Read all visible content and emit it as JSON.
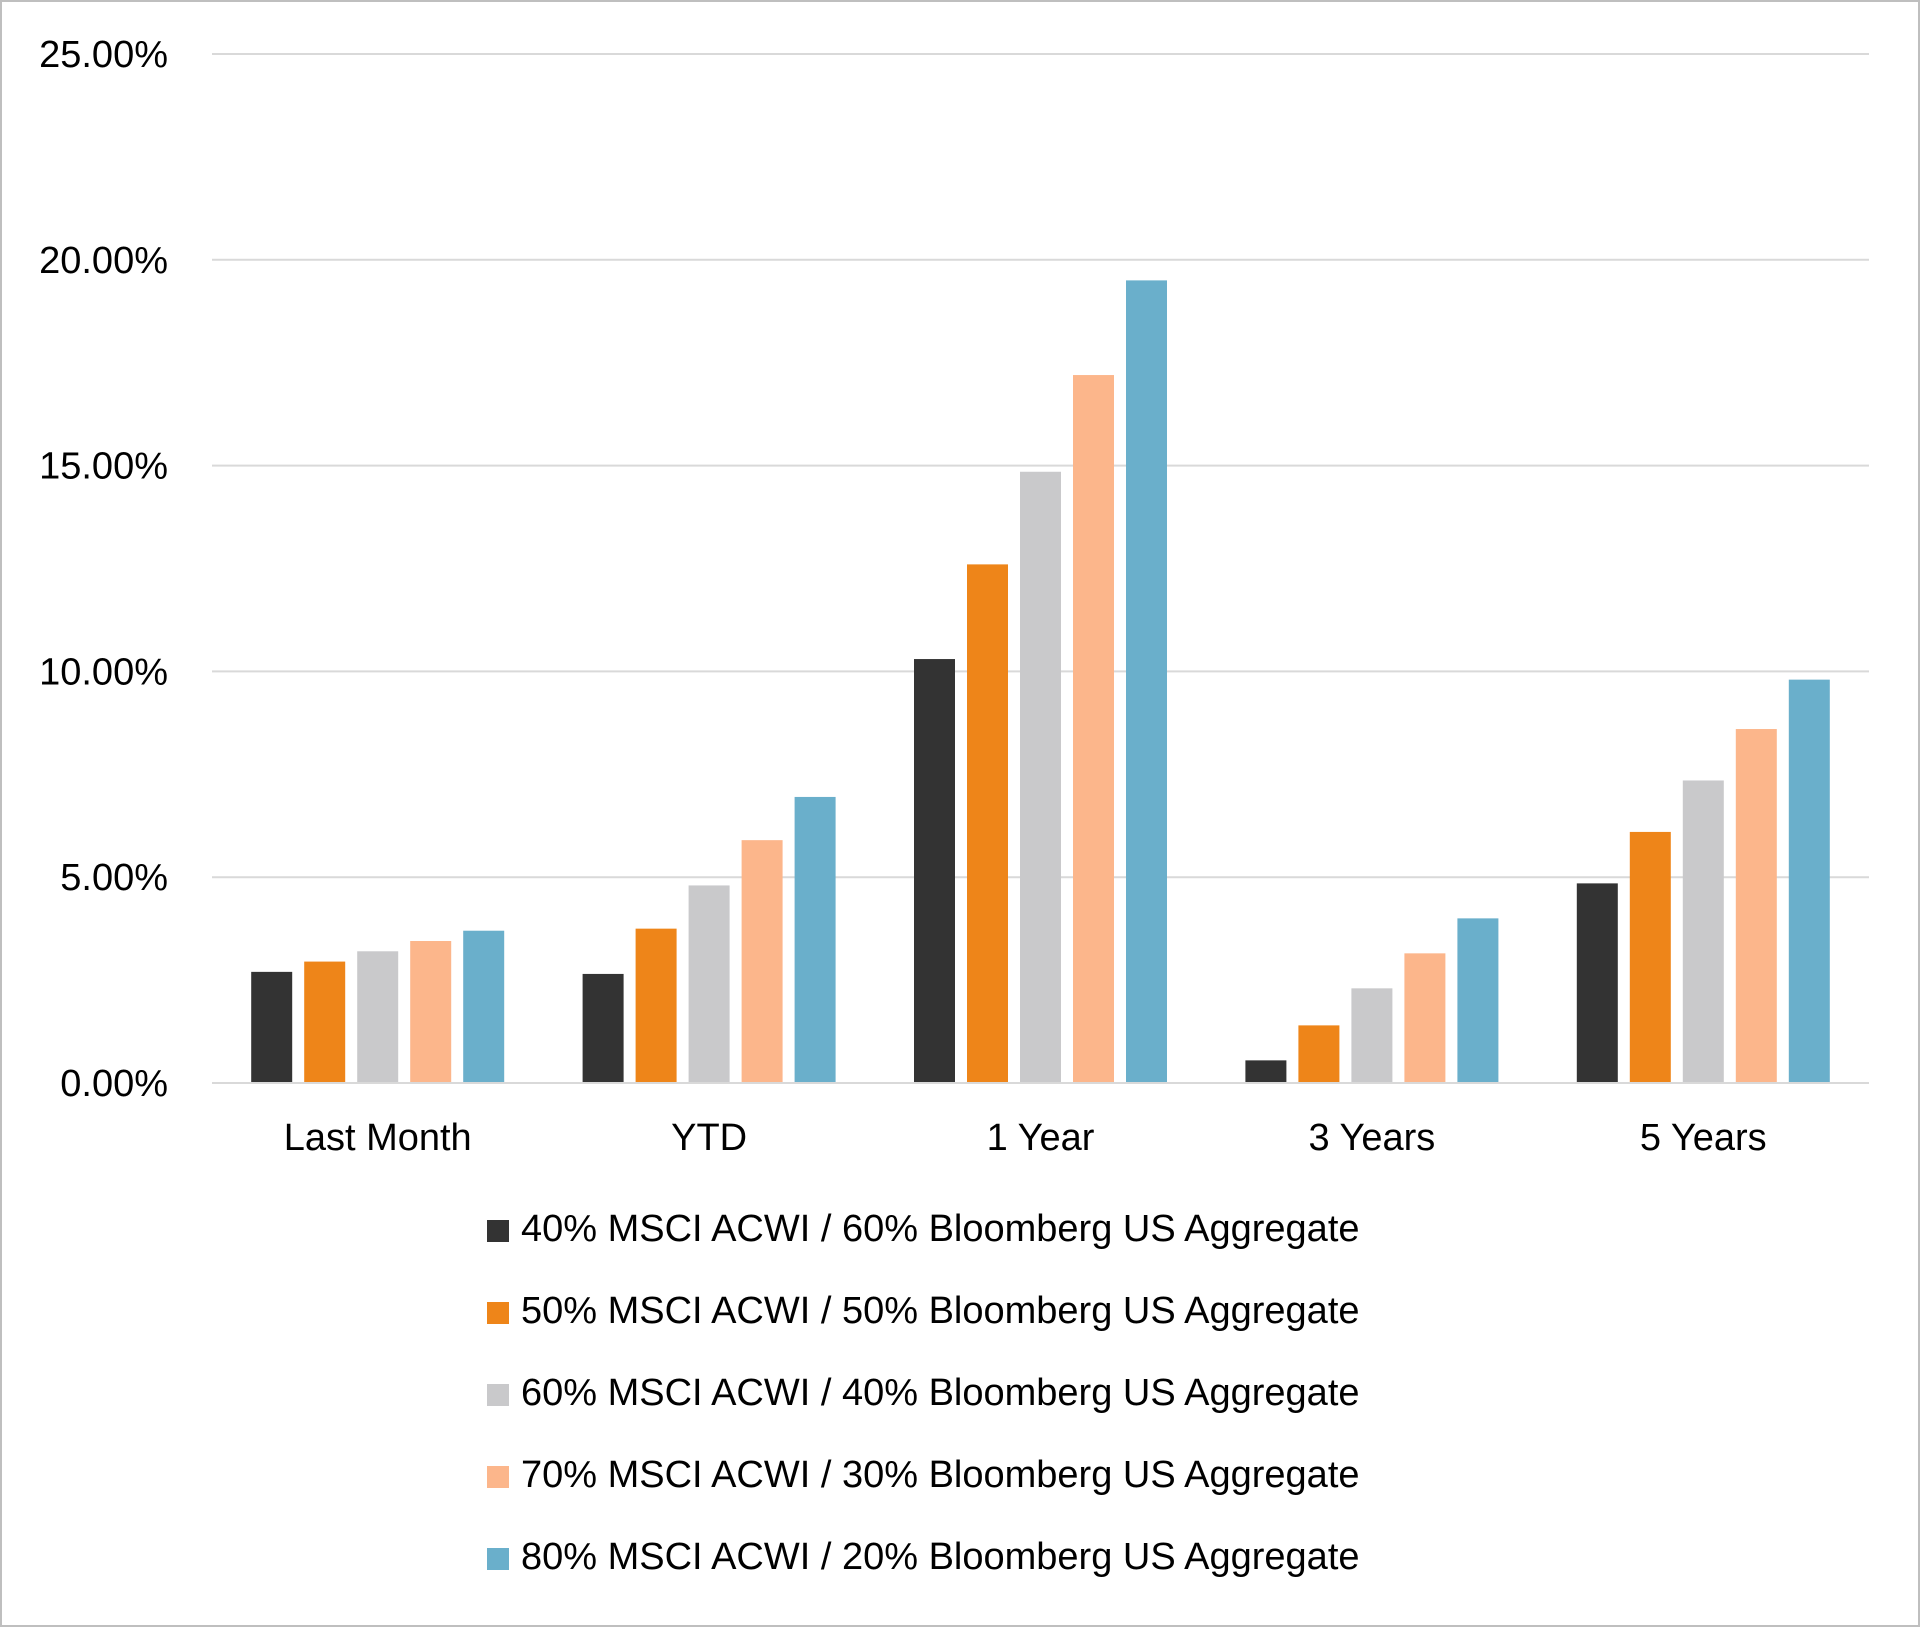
{
  "chart_data": {
    "type": "bar",
    "title": "",
    "xlabel": "",
    "ylabel": "",
    "categories": [
      "Last Month",
      "YTD",
      "1 Year",
      "3 Years",
      "5 Years"
    ],
    "ylim": [
      0,
      25
    ],
    "y_ticks": [
      0,
      5,
      10,
      15,
      20,
      25
    ],
    "y_tick_labels": [
      "0.00%",
      "5.00%",
      "10.00%",
      "15.00%",
      "20.00%",
      "25.00%"
    ],
    "grid": true,
    "legend_position": "bottom",
    "series": [
      {
        "name": "40% MSCI ACWI / 60% Bloomberg US Aggregate",
        "color": "#333333",
        "values": [
          2.7,
          2.65,
          10.3,
          0.55,
          4.85
        ]
      },
      {
        "name": "50% MSCI ACWI / 50% Bloomberg US Aggregate",
        "color": "#ee8519",
        "values": [
          2.95,
          3.75,
          12.6,
          1.4,
          6.1
        ]
      },
      {
        "name": "60% MSCI ACWI / 40% Bloomberg US Aggregate",
        "color": "#c9c9cb",
        "values": [
          3.2,
          4.8,
          14.85,
          2.3,
          7.35
        ]
      },
      {
        "name": "70% MSCI ACWI / 30% Bloomberg US Aggregate",
        "color": "#fcb68b",
        "values": [
          3.45,
          5.9,
          17.2,
          3.15,
          8.6
        ]
      },
      {
        "name": "80% MSCI ACWI / 20% Bloomberg US Aggregate",
        "color": "#6aafcb",
        "values": [
          3.7,
          6.95,
          19.5,
          4.0,
          9.8
        ]
      }
    ]
  }
}
